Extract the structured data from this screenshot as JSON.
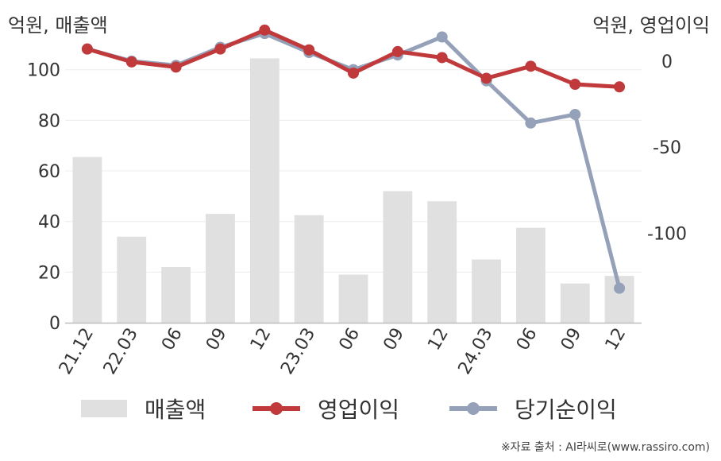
{
  "chart_data": {
    "type": "bar+line",
    "categories": [
      "21.12",
      "22.03",
      "06",
      "09",
      "12",
      "23.03",
      "06",
      "09",
      "12",
      "24.03",
      "06",
      "09",
      "12"
    ],
    "left_axis": {
      "unit": "억원, 매출액",
      "ylim": [
        0,
        115
      ],
      "ticks": [
        0,
        20,
        40,
        60,
        80,
        100
      ]
    },
    "right_axis": {
      "unit": "억원, 영업이익",
      "ylim": [
        -152,
        17
      ],
      "ticks": [
        0,
        -50,
        -100
      ]
    },
    "series": [
      {
        "name": "매출액",
        "type": "bar",
        "axis": "left",
        "color": "#e0e0e0",
        "values": [
          65.5,
          34,
          22,
          43,
          104.5,
          42.5,
          19,
          52,
          48,
          25,
          37.5,
          15.5,
          18.5
        ]
      },
      {
        "name": "영업이익",
        "type": "line",
        "axis": "right",
        "color": "#c0393b",
        "values": [
          7,
          -0.5,
          -3.5,
          7,
          18,
          6.5,
          -7,
          5.5,
          2,
          -10,
          -3,
          -13.5,
          -15
        ]
      },
      {
        "name": "당기순이익",
        "type": "line",
        "axis": "right",
        "color": "#95a1b9",
        "values": [
          7,
          0,
          -2.5,
          8,
          16,
          5,
          -5,
          3.5,
          14,
          -11.5,
          -36,
          -31,
          -132
        ]
      }
    ],
    "grid": true,
    "legend": "bottom"
  },
  "source": "※자료 출처 : AI라씨로(www.rassiro.com)"
}
